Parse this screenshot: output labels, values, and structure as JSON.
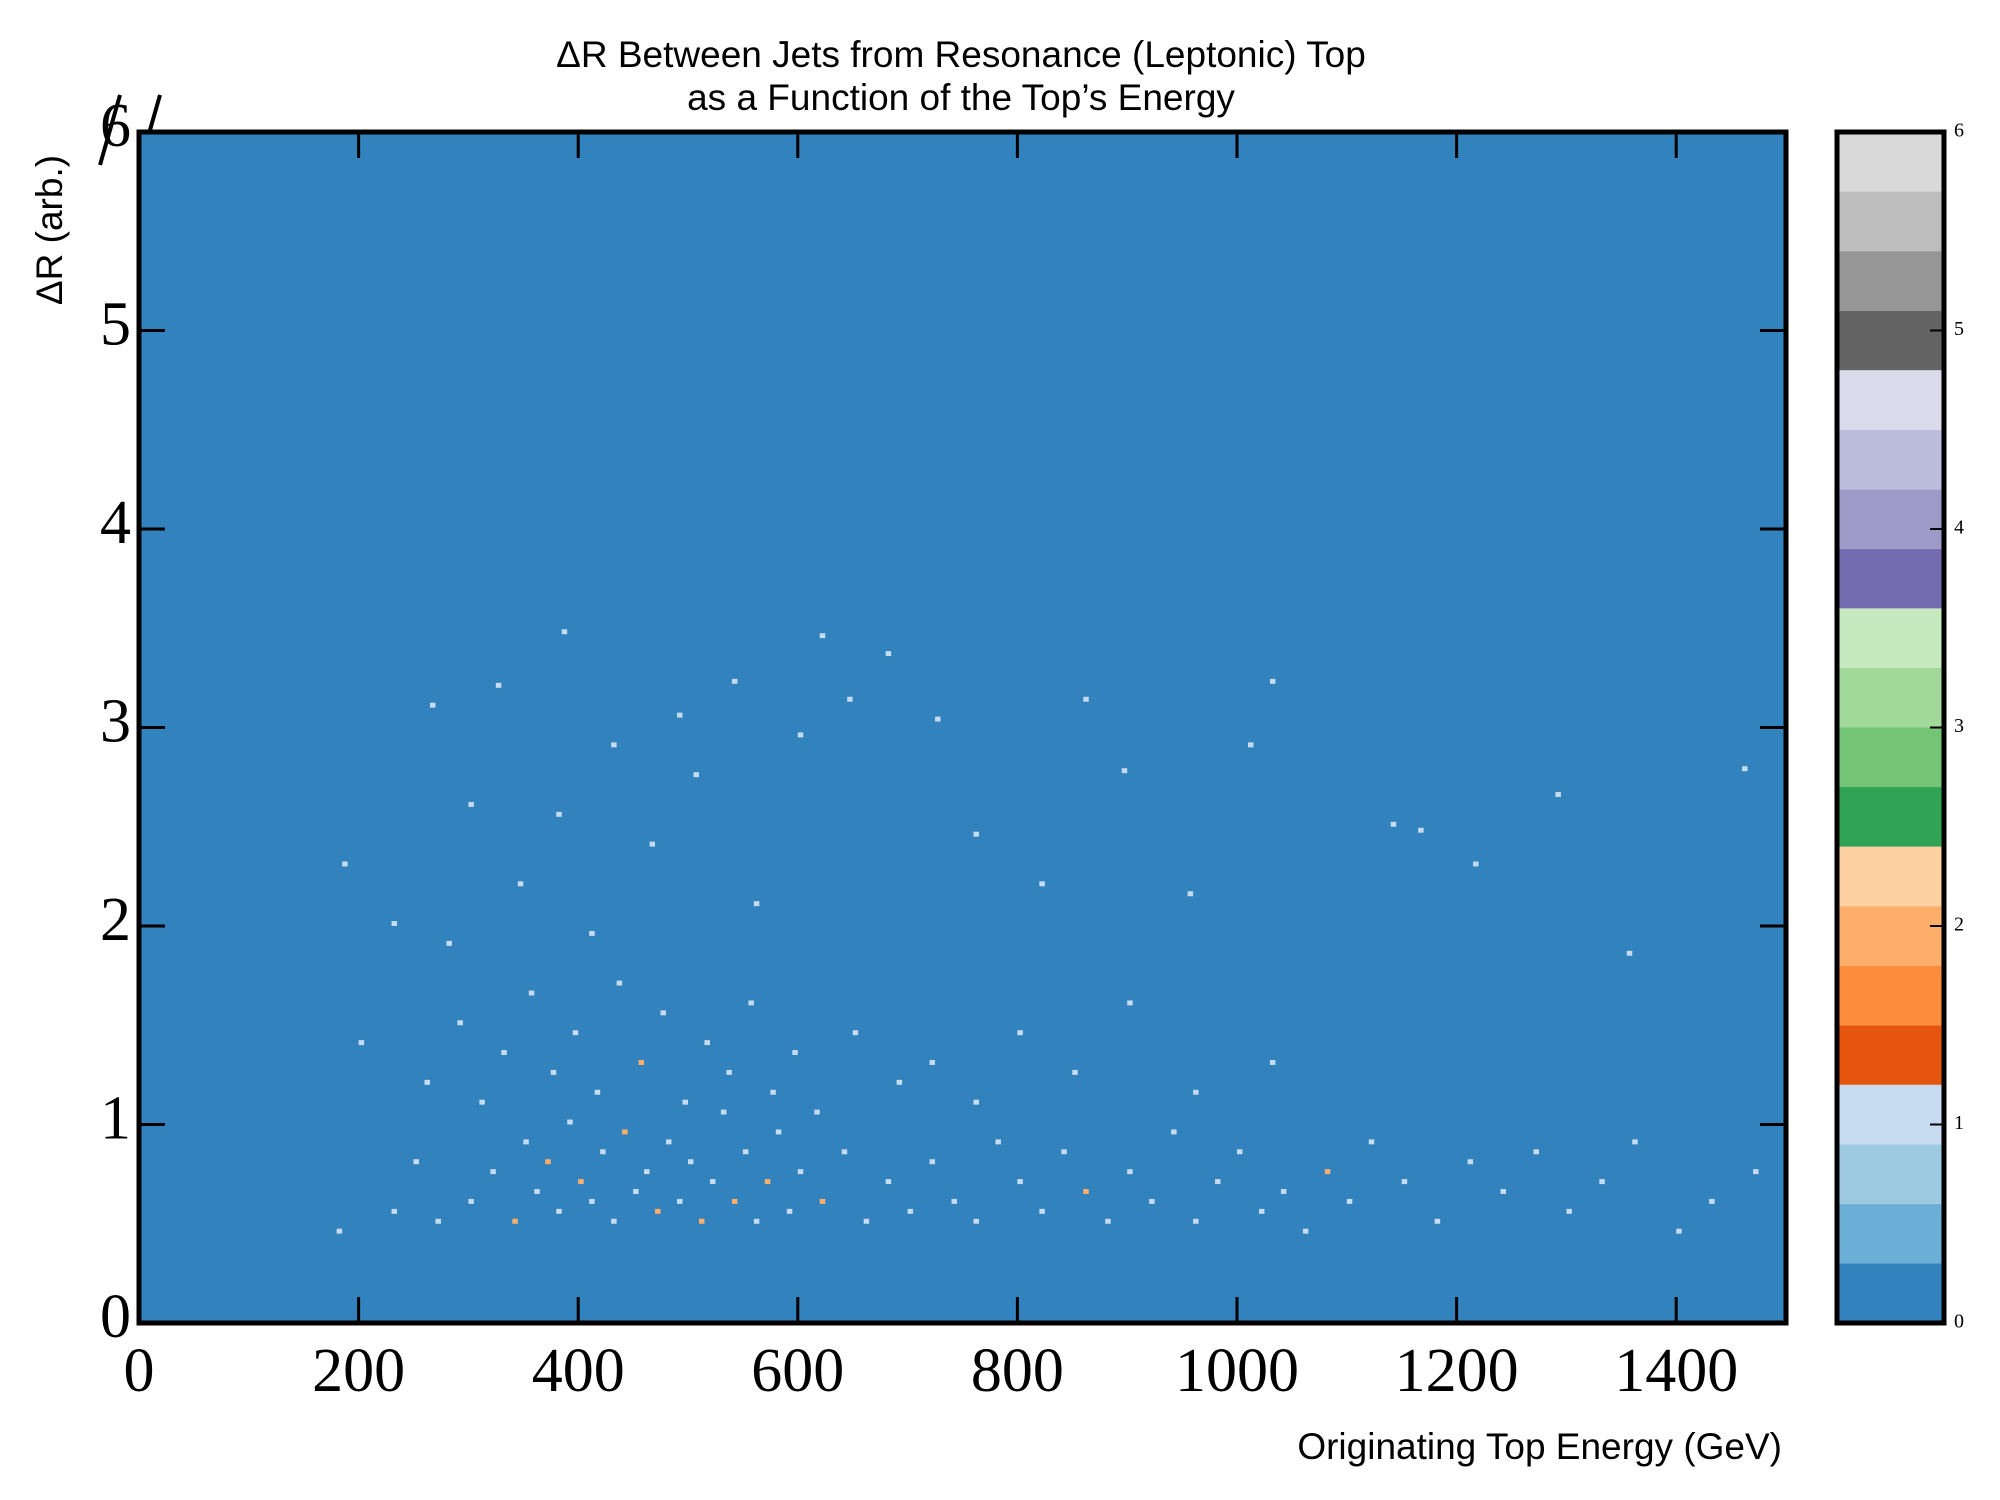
{
  "chart_data": {
    "type": "hist2d",
    "title": [
      "ΔR Between Jets from Resonance (Leptonic) Top",
      "as a Function of the Top’s Energy"
    ],
    "x_label": "Originating Top Energy (GeV)",
    "y_label": "ΔR (arb.)",
    "xlim": [
      0,
      1500
    ],
    "xticks": [
      0,
      200,
      400,
      600,
      800,
      1000,
      1200,
      1400
    ],
    "ylim": [
      0,
      6
    ],
    "yticks": [
      0,
      1,
      2,
      3,
      4,
      5,
      6
    ],
    "bin_width": [
      5,
      0.025
    ],
    "clim": [
      0,
      6
    ],
    "cticks": [
      0,
      1,
      2,
      3,
      4,
      5,
      6
    ],
    "colors": [
      "#3182bd",
      "#6baed6",
      "#9ecae1",
      "#c6dbef",
      "#e6550d",
      "#fd8d3c",
      "#fdae6b",
      "#fdd0a2",
      "#31a354",
      "#74c476",
      "#a1d99b",
      "#c7e9c0",
      "#756bb1",
      "#9e9ac8",
      "#bcbddc",
      "#dadaeb",
      "#636363",
      "#969696",
      "#bdbdbd",
      "#d9d9d9"
    ],
    "cells": [
      [
        300,
        0.6,
        1
      ],
      [
        320,
        0.75,
        1
      ],
      [
        340,
        0.5,
        2
      ],
      [
        350,
        0.9,
        1
      ],
      [
        360,
        0.65,
        1
      ],
      [
        370,
        0.8,
        2
      ],
      [
        380,
        0.55,
        1
      ],
      [
        390,
        1.0,
        1
      ],
      [
        400,
        0.7,
        2
      ],
      [
        410,
        0.6,
        1
      ],
      [
        420,
        0.85,
        1
      ],
      [
        430,
        0.5,
        1
      ],
      [
        440,
        0.95,
        2
      ],
      [
        450,
        0.65,
        1
      ],
      [
        460,
        0.75,
        1
      ],
      [
        470,
        0.55,
        2
      ],
      [
        480,
        0.9,
        1
      ],
      [
        490,
        0.6,
        1
      ],
      [
        500,
        0.8,
        1
      ],
      [
        510,
        0.5,
        2
      ],
      [
        520,
        0.7,
        1
      ],
      [
        530,
        1.05,
        1
      ],
      [
        540,
        0.6,
        2
      ],
      [
        550,
        0.85,
        1
      ],
      [
        560,
        0.5,
        1
      ],
      [
        570,
        0.7,
        2
      ],
      [
        580,
        0.95,
        1
      ],
      [
        590,
        0.55,
        1
      ],
      [
        600,
        0.75,
        1
      ],
      [
        620,
        0.6,
        2
      ],
      [
        640,
        0.85,
        1
      ],
      [
        660,
        0.5,
        1
      ],
      [
        680,
        0.7,
        1
      ],
      [
        700,
        0.55,
        1
      ],
      [
        260,
        1.2,
        1
      ],
      [
        290,
        1.5,
        1
      ],
      [
        310,
        1.1,
        1
      ],
      [
        330,
        1.35,
        1
      ],
      [
        355,
        1.65,
        1
      ],
      [
        375,
        1.25,
        1
      ],
      [
        395,
        1.45,
        1
      ],
      [
        415,
        1.15,
        1
      ],
      [
        435,
        1.7,
        1
      ],
      [
        455,
        1.3,
        2
      ],
      [
        475,
        1.55,
        1
      ],
      [
        495,
        1.1,
        1
      ],
      [
        515,
        1.4,
        1
      ],
      [
        535,
        1.25,
        1
      ],
      [
        555,
        1.6,
        1
      ],
      [
        575,
        1.15,
        1
      ],
      [
        595,
        1.35,
        1
      ],
      [
        615,
        1.05,
        1
      ],
      [
        650,
        1.45,
        1
      ],
      [
        690,
        1.2,
        1
      ],
      [
        720,
        1.3,
        1
      ],
      [
        760,
        1.1,
        1
      ],
      [
        800,
        1.45,
        1
      ],
      [
        850,
        1.25,
        1
      ],
      [
        900,
        1.6,
        1
      ],
      [
        960,
        1.15,
        1
      ],
      [
        1030,
        1.3,
        1
      ],
      [
        185,
        2.3,
        1
      ],
      [
        230,
        2.0,
        1
      ],
      [
        265,
        3.1,
        1
      ],
      [
        300,
        2.6,
        1
      ],
      [
        325,
        3.2,
        1
      ],
      [
        345,
        2.2,
        1
      ],
      [
        380,
        2.55,
        1
      ],
      [
        410,
        1.95,
        1
      ],
      [
        430,
        2.9,
        1
      ],
      [
        465,
        2.4,
        1
      ],
      [
        490,
        3.05,
        1
      ],
      [
        505,
        2.75,
        1
      ],
      [
        540,
        3.22,
        1
      ],
      [
        560,
        2.1,
        1
      ],
      [
        600,
        2.95,
        1
      ],
      [
        620,
        3.45,
        1
      ],
      [
        645,
        3.13,
        1
      ],
      [
        680,
        3.36,
        1
      ],
      [
        725,
        3.03,
        1
      ],
      [
        760,
        2.45,
        1
      ],
      [
        820,
        2.2,
        1
      ],
      [
        860,
        3.13,
        1
      ],
      [
        895,
        2.77,
        1
      ],
      [
        955,
        2.15,
        1
      ],
      [
        1010,
        2.9,
        1
      ],
      [
        1030,
        3.22,
        1
      ],
      [
        1140,
        2.5,
        1
      ],
      [
        1165,
        2.47,
        1
      ],
      [
        1215,
        2.3,
        1
      ],
      [
        1290,
        2.65,
        1
      ],
      [
        1355,
        1.85,
        1
      ],
      [
        1460,
        2.78,
        1
      ],
      [
        385,
        3.47,
        1
      ],
      [
        280,
        1.9,
        1
      ],
      [
        200,
        1.4,
        1
      ],
      [
        720,
        0.8,
        1
      ],
      [
        740,
        0.6,
        1
      ],
      [
        760,
        0.5,
        1
      ],
      [
        780,
        0.9,
        1
      ],
      [
        800,
        0.7,
        1
      ],
      [
        820,
        0.55,
        1
      ],
      [
        840,
        0.85,
        1
      ],
      [
        860,
        0.65,
        2
      ],
      [
        880,
        0.5,
        1
      ],
      [
        900,
        0.75,
        1
      ],
      [
        920,
        0.6,
        1
      ],
      [
        940,
        0.95,
        1
      ],
      [
        960,
        0.5,
        1
      ],
      [
        980,
        0.7,
        1
      ],
      [
        1000,
        0.85,
        1
      ],
      [
        1020,
        0.55,
        1
      ],
      [
        1040,
        0.65,
        1
      ],
      [
        1060,
        0.45,
        1
      ],
      [
        1080,
        0.75,
        2
      ],
      [
        1100,
        0.6,
        1
      ],
      [
        1120,
        0.9,
        1
      ],
      [
        1150,
        0.7,
        1
      ],
      [
        1180,
        0.5,
        1
      ],
      [
        1210,
        0.8,
        1
      ],
      [
        1240,
        0.65,
        1
      ],
      [
        1270,
        0.85,
        1
      ],
      [
        1300,
        0.55,
        1
      ],
      [
        1330,
        0.7,
        1
      ],
      [
        1360,
        0.9,
        1
      ],
      [
        1400,
        0.45,
        1
      ],
      [
        1430,
        0.6,
        1
      ],
      [
        1470,
        0.75,
        1
      ],
      [
        180,
        0.45,
        1
      ],
      [
        230,
        0.55,
        1
      ],
      [
        250,
        0.8,
        1
      ],
      [
        270,
        0.5,
        1
      ]
    ]
  }
}
